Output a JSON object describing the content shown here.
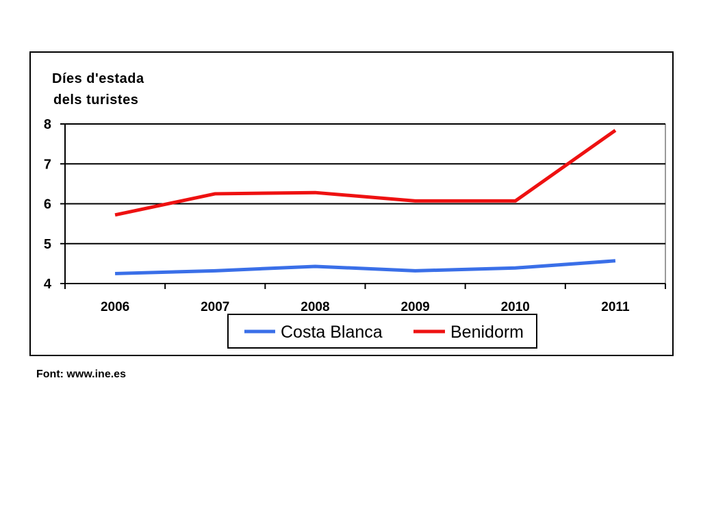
{
  "chart_data": {
    "type": "line",
    "ylabel": [
      "Díes d'estada",
      "dels turistes"
    ],
    "xlabel": "",
    "categories": [
      "2006",
      "2007",
      "2008",
      "2009",
      "2010",
      "2011"
    ],
    "ylim": [
      4,
      8
    ],
    "yticks": [
      "4",
      "5",
      "6",
      "7",
      "8"
    ],
    "grid": true,
    "legend_position": "bottom",
    "series": [
      {
        "name": "Costa Blanca",
        "color": "#3a6fe8",
        "values": [
          4.25,
          4.32,
          4.43,
          4.32,
          4.39,
          4.57
        ]
      },
      {
        "name": "Benidorm",
        "color": "#ee1111",
        "values": [
          5.72,
          6.25,
          6.28,
          6.07,
          6.07,
          7.84
        ]
      }
    ]
  },
  "footer": {
    "source": "Font: www.ine.es"
  }
}
